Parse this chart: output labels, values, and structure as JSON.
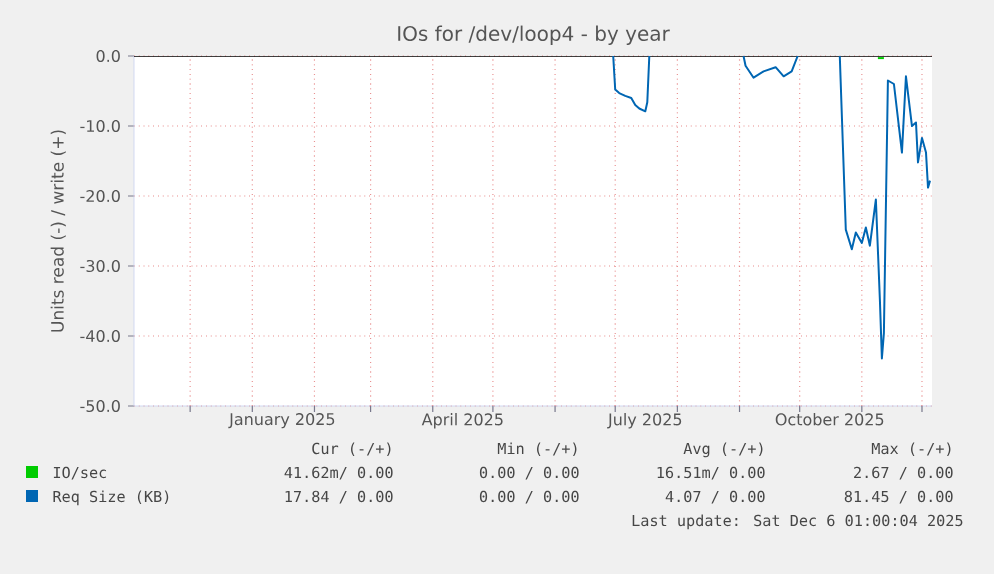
{
  "chart_data": {
    "type": "line",
    "title": "IOs for /dev/loop4 - by year",
    "ylabel": "Units read (-) / write (+)",
    "xlim": [
      "2024-11-03",
      "2025-12-06"
    ],
    "xticks": [
      {
        "value": "2024-12-01",
        "label": null
      },
      {
        "value": "2025-01-01",
        "label": null
      },
      {
        "value": "2025-02-01",
        "label": null
      },
      {
        "value": "2025-03-01",
        "label": null
      },
      {
        "value": "2025-04-01",
        "label": null
      },
      {
        "value": "2025-05-01",
        "label": null
      },
      {
        "value": "2025-06-01",
        "label": null
      },
      {
        "value": "2025-07-01",
        "label": null
      },
      {
        "value": "2025-08-01",
        "label": null
      },
      {
        "value": "2025-09-01",
        "label": null
      },
      {
        "value": "2025-10-01",
        "label": null
      },
      {
        "value": "2025-11-01",
        "label": null
      },
      {
        "value": "2025-12-01",
        "label": null
      },
      {
        "value": "2025-01-16",
        "label": "January 2025"
      },
      {
        "value": "2025-04-16",
        "label": "April 2025"
      },
      {
        "value": "2025-07-16",
        "label": "July 2025"
      },
      {
        "value": "2025-10-16",
        "label": "October 2025"
      }
    ],
    "ylim": [
      -50,
      0
    ],
    "yticks": [
      {
        "value": 0,
        "label": "0.0"
      },
      {
        "value": -10,
        "label": "-10.0"
      },
      {
        "value": -20,
        "label": "-20.0"
      },
      {
        "value": -30,
        "label": "-30.0"
      },
      {
        "value": -40,
        "label": "-40.0"
      },
      {
        "value": -50,
        "label": "-50.0"
      }
    ],
    "grid": true,
    "legend": "bottom",
    "ref_lines": [
      {
        "axis": "y",
        "value": 0,
        "label": null,
        "color": "#000000"
      }
    ],
    "series": [
      {
        "name": "IO/sec",
        "color": "#00cc00",
        "x": [
          "2025-11-09",
          "2025-11-12"
        ],
        "values": [
          -0.3,
          -0.3
        ]
      },
      {
        "name": "Req Size (KB)",
        "color": "#0066b3",
        "x": [
          "2025-06-30",
          "2025-07-01",
          "2025-07-03",
          "2025-07-06",
          "2025-07-09",
          "2025-07-11",
          "2025-07-13",
          "2025-07-16",
          "2025-07-17",
          "2025-07-18",
          "2025-08-15",
          "2025-09-03",
          "2025-09-04",
          "2025-09-08",
          "2025-09-13",
          "2025-09-19",
          "2025-09-23",
          "2025-09-27",
          "2025-09-30",
          "2025-10-10",
          "2025-10-21",
          "2025-10-24",
          "2025-10-27",
          "2025-10-29",
          "2025-11-01",
          "2025-11-03",
          "2025-11-05",
          "2025-11-08",
          "2025-11-10",
          "2025-11-11",
          "2025-11-12",
          "2025-11-14",
          "2025-11-17",
          "2025-11-21",
          "2025-11-23",
          "2025-11-26",
          "2025-11-28",
          "2025-11-29",
          "2025-12-01",
          "2025-12-03",
          "2025-12-04",
          "2025-12-05"
        ],
        "values": [
          0,
          -4.8,
          -5.3,
          -5.7,
          -6.0,
          -7.0,
          -7.5,
          -7.9,
          -6.6,
          0,
          null,
          0,
          -1.4,
          -3.1,
          -2.2,
          -1.6,
          -2.9,
          -2.2,
          0,
          null,
          0,
          -24.8,
          -27.6,
          -25.2,
          -26.7,
          -24.5,
          -27.1,
          -20.5,
          -34.8,
          -43.2,
          -39.6,
          -3.5,
          -4.0,
          -13.8,
          -2.9,
          -10.0,
          -9.5,
          -15.2,
          -11.7,
          -13.8,
          -18.8,
          -17.8
        ]
      }
    ],
    "annotations": [
      "Cur (-/+)",
      "Min (-/+)",
      "Avg (-/+)",
      "Max (-/+)",
      "41.62m/ 0.00",
      "0.00 / 0.00",
      "16.51m/ 0.00",
      "2.67 / 0.00",
      "17.84 / 0.00",
      "0.00 / 0.00",
      "4.07 / 0.00",
      "81.45 / 0.00",
      "Last update: Sat Dec  6 01:00:04 2025"
    ]
  }
}
